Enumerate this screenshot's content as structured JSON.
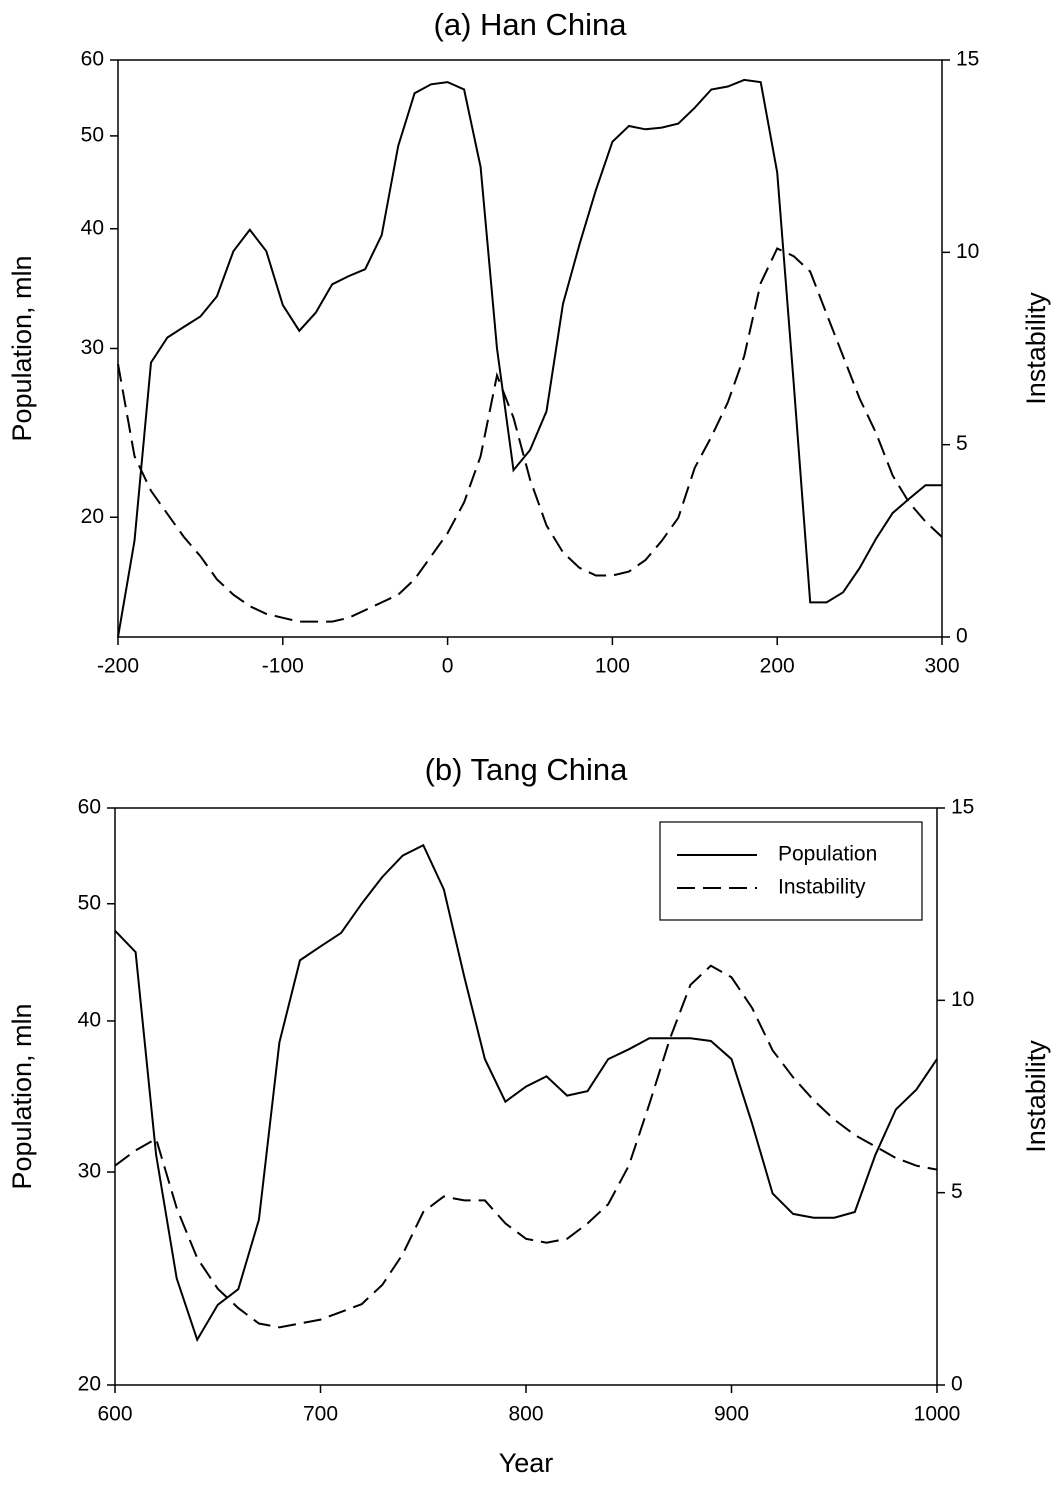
{
  "chart_data": [
    {
      "type": "line",
      "title": "(a) Han China",
      "ylabel": "Population, mln",
      "y2label": "Instability",
      "x": [
        -200,
        -190,
        -180,
        -170,
        -160,
        -150,
        -140,
        -130,
        -120,
        -110,
        -100,
        -90,
        -80,
        -70,
        -60,
        -50,
        -40,
        -30,
        -20,
        -10,
        0,
        10,
        20,
        30,
        40,
        50,
        60,
        70,
        80,
        90,
        100,
        110,
        120,
        130,
        140,
        150,
        160,
        170,
        180,
        190,
        200,
        210,
        220,
        230,
        240,
        250,
        260,
        270,
        280,
        290,
        300
      ],
      "series": [
        {
          "color": "#000000",
          "line_style": "solid",
          "values": [
            15,
            18.9,
            29,
            30.8,
            31.6,
            32.4,
            34.0,
            37.9,
            39.9,
            37.9,
            33.3,
            31.3,
            32.7,
            35.0,
            35.7,
            36.3,
            39.4,
            48.8,
            55.4,
            56.6,
            56.9,
            55.9,
            46.4,
            30,
            22.4,
            23.5,
            25.8,
            33.4,
            38.5,
            43.9,
            49.3,
            51.2,
            50.8,
            51.0,
            51.5,
            53.5,
            55.9,
            56.3,
            57.2,
            56.9,
            45.8,
            27.6,
            16.3,
            16.3,
            16.7,
            17.7,
            19.0,
            20.2,
            20.9,
            21.6,
            21.6
          ]
        },
        {
          "color": "#000000",
          "line_style": "dashed",
          "axis": "y2",
          "values": [
            7.1,
            4.7,
            3.8,
            3.2,
            2.6,
            2.1,
            1.5,
            1.1,
            0.8,
            0.6,
            0.5,
            0.4,
            0.4,
            0.4,
            0.5,
            0.7,
            0.9,
            1.1,
            1.5,
            2.1,
            2.7,
            3.5,
            4.7,
            6.8,
            5.7,
            4.1,
            2.9,
            2.2,
            1.8,
            1.6,
            1.6,
            1.7,
            2.0,
            2.5,
            3.1,
            4.4,
            5.2,
            6.1,
            7.3,
            9.2,
            10.1,
            9.9,
            9.5,
            8.4,
            7.3,
            6.2,
            5.3,
            4.2,
            3.5,
            3.0,
            2.6
          ]
        }
      ],
      "xlim": [
        -200,
        300
      ],
      "xticks": [
        -200,
        -100,
        0,
        100,
        200,
        300
      ],
      "yscale": "log",
      "ylim": [
        15,
        60
      ],
      "yticks": [
        20,
        30,
        40,
        50,
        60
      ],
      "y2lim": [
        0,
        15
      ],
      "y2ticks": [
        0,
        5,
        10,
        15
      ]
    },
    {
      "type": "line",
      "title": "(b) Tang China",
      "xlabel": "Year",
      "ylabel": "Population, mln",
      "y2label": "Instability",
      "legend": "upper right",
      "x": [
        600,
        610,
        620,
        630,
        640,
        650,
        660,
        670,
        680,
        690,
        700,
        710,
        720,
        730,
        740,
        750,
        760,
        770,
        780,
        790,
        800,
        810,
        820,
        830,
        840,
        850,
        860,
        870,
        880,
        890,
        900,
        910,
        920,
        930,
        940,
        950,
        960,
        970,
        980,
        990,
        1000
      ],
      "series": [
        {
          "name": "Population",
          "color": "#000000",
          "line_style": "solid",
          "values": [
            47.5,
            45.6,
            31.0,
            24.5,
            21.8,
            23.3,
            24.0,
            27.4,
            38.4,
            44.9,
            46.1,
            47.3,
            50.0,
            52.6,
            54.8,
            55.9,
            51.4,
            43.5,
            37.2,
            34.3,
            35.3,
            36.0,
            34.7,
            35.0,
            37.2,
            37.9,
            38.7,
            38.7,
            38.7,
            38.5,
            37.2,
            32.9,
            28.8,
            27.7,
            27.5,
            27.5,
            27.8,
            31.0,
            33.8,
            35.1,
            37.2
          ]
        },
        {
          "name": "Instability",
          "color": "#000000",
          "line_style": "dashed",
          "axis": "y2",
          "values": [
            5.7,
            6.1,
            6.4,
            4.6,
            3.3,
            2.5,
            2.0,
            1.6,
            1.5,
            1.6,
            1.7,
            1.9,
            2.1,
            2.6,
            3.4,
            4.5,
            4.9,
            4.8,
            4.8,
            4.2,
            3.8,
            3.7,
            3.8,
            4.2,
            4.7,
            5.7,
            7.3,
            9.0,
            10.4,
            10.9,
            10.6,
            9.8,
            8.7,
            8.0,
            7.4,
            6.9,
            6.5,
            6.2,
            5.9,
            5.7,
            5.6
          ]
        }
      ],
      "xlim": [
        600,
        1000
      ],
      "xticks": [
        600,
        700,
        800,
        900,
        1000
      ],
      "yscale": "log",
      "ylim": [
        20,
        60
      ],
      "yticks": [
        20,
        30,
        40,
        50,
        60
      ],
      "y2lim": [
        0,
        15
      ],
      "y2ticks": [
        0,
        5,
        10,
        15
      ]
    }
  ]
}
